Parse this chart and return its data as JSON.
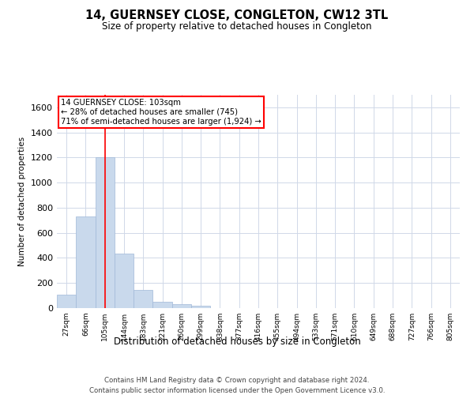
{
  "title": "14, GUERNSEY CLOSE, CONGLETON, CW12 3TL",
  "subtitle": "Size of property relative to detached houses in Congleton",
  "xlabel": "Distribution of detached houses by size in Congleton",
  "ylabel": "Number of detached properties",
  "bar_labels": [
    "27sqm",
    "66sqm",
    "105sqm",
    "144sqm",
    "183sqm",
    "221sqm",
    "260sqm",
    "299sqm",
    "338sqm",
    "377sqm",
    "416sqm",
    "455sqm",
    "494sqm",
    "533sqm",
    "571sqm",
    "610sqm",
    "649sqm",
    "688sqm",
    "727sqm",
    "766sqm",
    "805sqm"
  ],
  "bar_values": [
    105,
    730,
    1200,
    435,
    145,
    50,
    30,
    20,
    0,
    0,
    0,
    0,
    0,
    0,
    0,
    0,
    0,
    0,
    0,
    0,
    0
  ],
  "bar_color": "#c9d9ec",
  "bar_edge_color": "#a0b8d8",
  "ylim": [
    0,
    1700
  ],
  "yticks": [
    0,
    200,
    400,
    600,
    800,
    1000,
    1200,
    1400,
    1600
  ],
  "property_bin_index": 2,
  "annotation_text": "14 GUERNSEY CLOSE: 103sqm\n← 28% of detached houses are smaller (745)\n71% of semi-detached houses are larger (1,924) →",
  "annotation_box_color": "white",
  "annotation_box_edge": "red",
  "vline_color": "red",
  "grid_color": "#d0d8e8",
  "background_color": "white",
  "footer_line1": "Contains HM Land Registry data © Crown copyright and database right 2024.",
  "footer_line2": "Contains public sector information licensed under the Open Government Licence v3.0."
}
